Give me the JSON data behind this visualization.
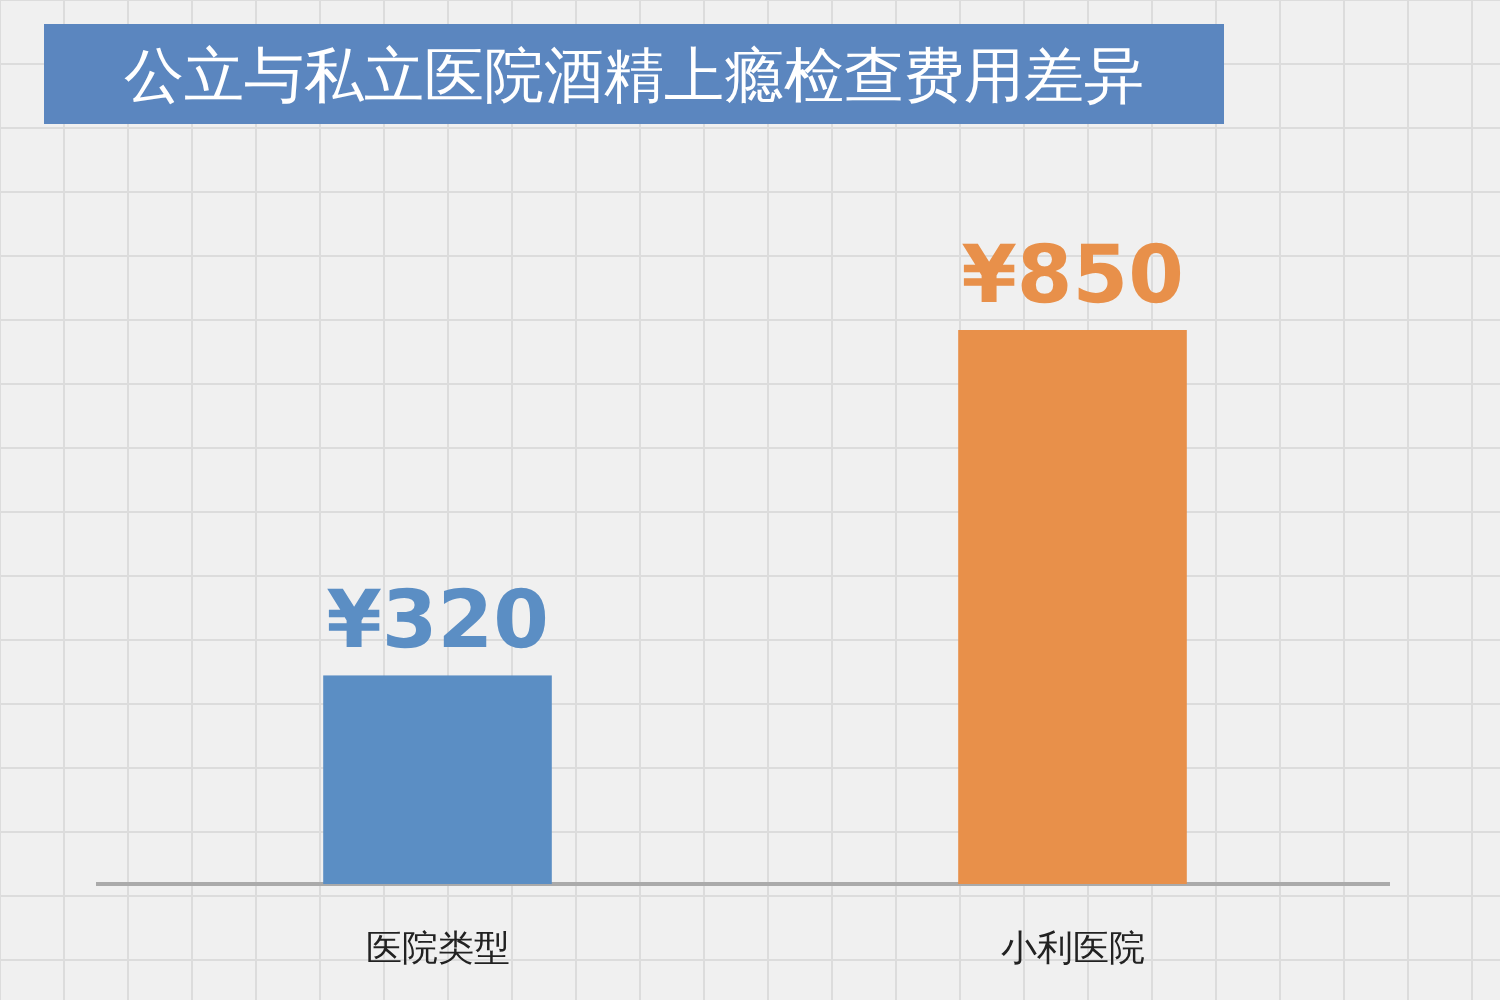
{
  "chart_data": {
    "type": "bar",
    "title": "公立与私立医院酒精上瘾检查费用差异",
    "categories": [
      "医院类型",
      "小利医院"
    ],
    "values": [
      320,
      850
    ],
    "colors": [
      "#5b8ec4",
      "#e8904a"
    ],
    "value_labels": [
      "¥320",
      "¥850"
    ],
    "grid": true
  }
}
